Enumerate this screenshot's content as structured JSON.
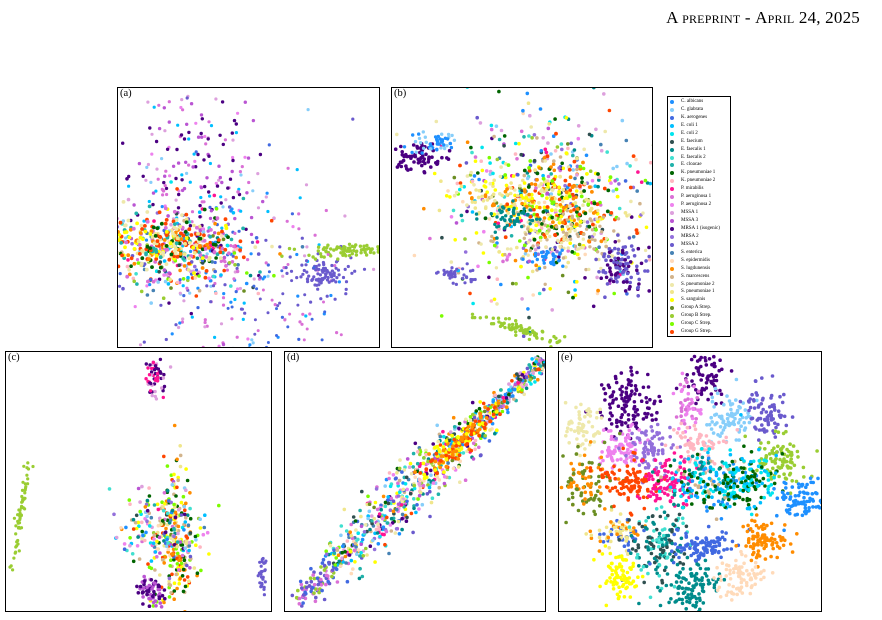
{
  "header": {
    "first": "A",
    "preprint": "preprint",
    "sep": " - ",
    "date": "April 24, 2025"
  },
  "panels": {
    "a": {
      "label": "(a)"
    },
    "b": {
      "label": "(b)"
    },
    "c": {
      "label": "(c)"
    },
    "d": {
      "label": "(d)"
    },
    "e": {
      "label": "(e)"
    }
  },
  "legend": [
    {
      "name": "C. albicans",
      "color": "#1e90ff"
    },
    {
      "name": "C. glabrata",
      "color": "#87cefa"
    },
    {
      "name": "K. aerogenes",
      "color": "#4169e1"
    },
    {
      "name": "E. coli 1",
      "color": "#00bfff"
    },
    {
      "name": "E. coli 2",
      "color": "#00e5ee"
    },
    {
      "name": "E. faecium",
      "color": "#2f4f4f"
    },
    {
      "name": "E. faecalis 1",
      "color": "#008b8b"
    },
    {
      "name": "E. faecalis 2",
      "color": "#40e0d0"
    },
    {
      "name": "E. cloacae",
      "color": "#20b2aa"
    },
    {
      "name": "K. pneumoniae 1",
      "color": "#006400"
    },
    {
      "name": "K. pneumoniae 2",
      "color": "#ffb6c1"
    },
    {
      "name": "P. mirabilis",
      "color": "#ff1493"
    },
    {
      "name": "P. aeruginosa 1",
      "color": "#da70d6"
    },
    {
      "name": "P. aeruginosa 2",
      "color": "#ee82ee"
    },
    {
      "name": "MSSA 1",
      "color": "#dda0dd"
    },
    {
      "name": "MSSA 3",
      "color": "#ba55d3"
    },
    {
      "name": "MRSA 1 (isogenic)",
      "color": "#4b0082"
    },
    {
      "name": "MRSA 2",
      "color": "#9370db"
    },
    {
      "name": "MSSA 2",
      "color": "#6a5acd"
    },
    {
      "name": "S. enterica",
      "color": "#4682b4"
    },
    {
      "name": "S. epidermidis",
      "color": "#ffdab9"
    },
    {
      "name": "S. lugdunensis",
      "color": "#ff8c00"
    },
    {
      "name": "S. marcescens",
      "color": "#d2b48c"
    },
    {
      "name": "S. pneumoniae 2",
      "color": "#eee8aa"
    },
    {
      "name": "S. pneumoniae 1",
      "color": "#f0e68c"
    },
    {
      "name": "S. sanguinis",
      "color": "#ffff00"
    },
    {
      "name": "Group A Strep.",
      "color": "#6b8e23"
    },
    {
      "name": "Group B Strep.",
      "color": "#9acd32"
    },
    {
      "name": "Group C Strep.",
      "color": "#7cfc00"
    },
    {
      "name": "Group G Strep.",
      "color": "#ff4500"
    }
  ]
}
